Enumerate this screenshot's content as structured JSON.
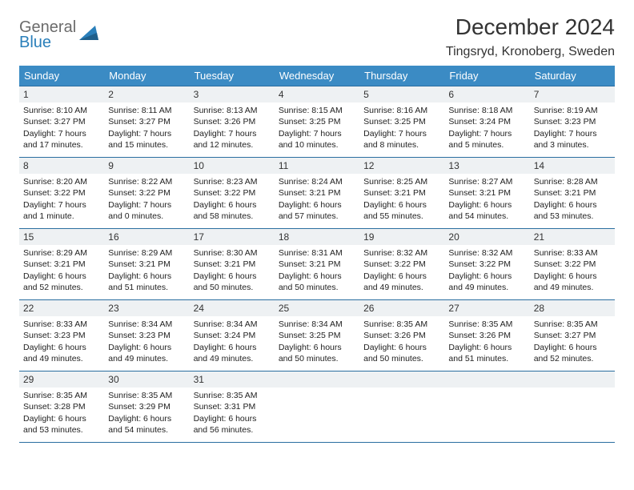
{
  "logo": {
    "general": "General",
    "blue": "Blue"
  },
  "title": "December 2024",
  "location": "Tingsryd, Kronoberg, Sweden",
  "colors": {
    "header_bg": "#3b8bc4",
    "header_text": "#ffffff",
    "daynum_bg": "#eef1f3",
    "border": "#2a6ea0",
    "logo_gray": "#6b6b6b",
    "logo_blue": "#2a7fba"
  },
  "day_headers": [
    "Sunday",
    "Monday",
    "Tuesday",
    "Wednesday",
    "Thursday",
    "Friday",
    "Saturday"
  ],
  "weeks": [
    [
      {
        "n": "1",
        "sr": "Sunrise: 8:10 AM",
        "ss": "Sunset: 3:27 PM",
        "dl": "Daylight: 7 hours and 17 minutes."
      },
      {
        "n": "2",
        "sr": "Sunrise: 8:11 AM",
        "ss": "Sunset: 3:27 PM",
        "dl": "Daylight: 7 hours and 15 minutes."
      },
      {
        "n": "3",
        "sr": "Sunrise: 8:13 AM",
        "ss": "Sunset: 3:26 PM",
        "dl": "Daylight: 7 hours and 12 minutes."
      },
      {
        "n": "4",
        "sr": "Sunrise: 8:15 AM",
        "ss": "Sunset: 3:25 PM",
        "dl": "Daylight: 7 hours and 10 minutes."
      },
      {
        "n": "5",
        "sr": "Sunrise: 8:16 AM",
        "ss": "Sunset: 3:25 PM",
        "dl": "Daylight: 7 hours and 8 minutes."
      },
      {
        "n": "6",
        "sr": "Sunrise: 8:18 AM",
        "ss": "Sunset: 3:24 PM",
        "dl": "Daylight: 7 hours and 5 minutes."
      },
      {
        "n": "7",
        "sr": "Sunrise: 8:19 AM",
        "ss": "Sunset: 3:23 PM",
        "dl": "Daylight: 7 hours and 3 minutes."
      }
    ],
    [
      {
        "n": "8",
        "sr": "Sunrise: 8:20 AM",
        "ss": "Sunset: 3:22 PM",
        "dl": "Daylight: 7 hours and 1 minute."
      },
      {
        "n": "9",
        "sr": "Sunrise: 8:22 AM",
        "ss": "Sunset: 3:22 PM",
        "dl": "Daylight: 7 hours and 0 minutes."
      },
      {
        "n": "10",
        "sr": "Sunrise: 8:23 AM",
        "ss": "Sunset: 3:22 PM",
        "dl": "Daylight: 6 hours and 58 minutes."
      },
      {
        "n": "11",
        "sr": "Sunrise: 8:24 AM",
        "ss": "Sunset: 3:21 PM",
        "dl": "Daylight: 6 hours and 57 minutes."
      },
      {
        "n": "12",
        "sr": "Sunrise: 8:25 AM",
        "ss": "Sunset: 3:21 PM",
        "dl": "Daylight: 6 hours and 55 minutes."
      },
      {
        "n": "13",
        "sr": "Sunrise: 8:27 AM",
        "ss": "Sunset: 3:21 PM",
        "dl": "Daylight: 6 hours and 54 minutes."
      },
      {
        "n": "14",
        "sr": "Sunrise: 8:28 AM",
        "ss": "Sunset: 3:21 PM",
        "dl": "Daylight: 6 hours and 53 minutes."
      }
    ],
    [
      {
        "n": "15",
        "sr": "Sunrise: 8:29 AM",
        "ss": "Sunset: 3:21 PM",
        "dl": "Daylight: 6 hours and 52 minutes."
      },
      {
        "n": "16",
        "sr": "Sunrise: 8:29 AM",
        "ss": "Sunset: 3:21 PM",
        "dl": "Daylight: 6 hours and 51 minutes."
      },
      {
        "n": "17",
        "sr": "Sunrise: 8:30 AM",
        "ss": "Sunset: 3:21 PM",
        "dl": "Daylight: 6 hours and 50 minutes."
      },
      {
        "n": "18",
        "sr": "Sunrise: 8:31 AM",
        "ss": "Sunset: 3:21 PM",
        "dl": "Daylight: 6 hours and 50 minutes."
      },
      {
        "n": "19",
        "sr": "Sunrise: 8:32 AM",
        "ss": "Sunset: 3:22 PM",
        "dl": "Daylight: 6 hours and 49 minutes."
      },
      {
        "n": "20",
        "sr": "Sunrise: 8:32 AM",
        "ss": "Sunset: 3:22 PM",
        "dl": "Daylight: 6 hours and 49 minutes."
      },
      {
        "n": "21",
        "sr": "Sunrise: 8:33 AM",
        "ss": "Sunset: 3:22 PM",
        "dl": "Daylight: 6 hours and 49 minutes."
      }
    ],
    [
      {
        "n": "22",
        "sr": "Sunrise: 8:33 AM",
        "ss": "Sunset: 3:23 PM",
        "dl": "Daylight: 6 hours and 49 minutes."
      },
      {
        "n": "23",
        "sr": "Sunrise: 8:34 AM",
        "ss": "Sunset: 3:23 PM",
        "dl": "Daylight: 6 hours and 49 minutes."
      },
      {
        "n": "24",
        "sr": "Sunrise: 8:34 AM",
        "ss": "Sunset: 3:24 PM",
        "dl": "Daylight: 6 hours and 49 minutes."
      },
      {
        "n": "25",
        "sr": "Sunrise: 8:34 AM",
        "ss": "Sunset: 3:25 PM",
        "dl": "Daylight: 6 hours and 50 minutes."
      },
      {
        "n": "26",
        "sr": "Sunrise: 8:35 AM",
        "ss": "Sunset: 3:26 PM",
        "dl": "Daylight: 6 hours and 50 minutes."
      },
      {
        "n": "27",
        "sr": "Sunrise: 8:35 AM",
        "ss": "Sunset: 3:26 PM",
        "dl": "Daylight: 6 hours and 51 minutes."
      },
      {
        "n": "28",
        "sr": "Sunrise: 8:35 AM",
        "ss": "Sunset: 3:27 PM",
        "dl": "Daylight: 6 hours and 52 minutes."
      }
    ],
    [
      {
        "n": "29",
        "sr": "Sunrise: 8:35 AM",
        "ss": "Sunset: 3:28 PM",
        "dl": "Daylight: 6 hours and 53 minutes."
      },
      {
        "n": "30",
        "sr": "Sunrise: 8:35 AM",
        "ss": "Sunset: 3:29 PM",
        "dl": "Daylight: 6 hours and 54 minutes."
      },
      {
        "n": "31",
        "sr": "Sunrise: 8:35 AM",
        "ss": "Sunset: 3:31 PM",
        "dl": "Daylight: 6 hours and 56 minutes."
      },
      {
        "n": "",
        "sr": "",
        "ss": "",
        "dl": ""
      },
      {
        "n": "",
        "sr": "",
        "ss": "",
        "dl": ""
      },
      {
        "n": "",
        "sr": "",
        "ss": "",
        "dl": ""
      },
      {
        "n": "",
        "sr": "",
        "ss": "",
        "dl": ""
      }
    ]
  ]
}
